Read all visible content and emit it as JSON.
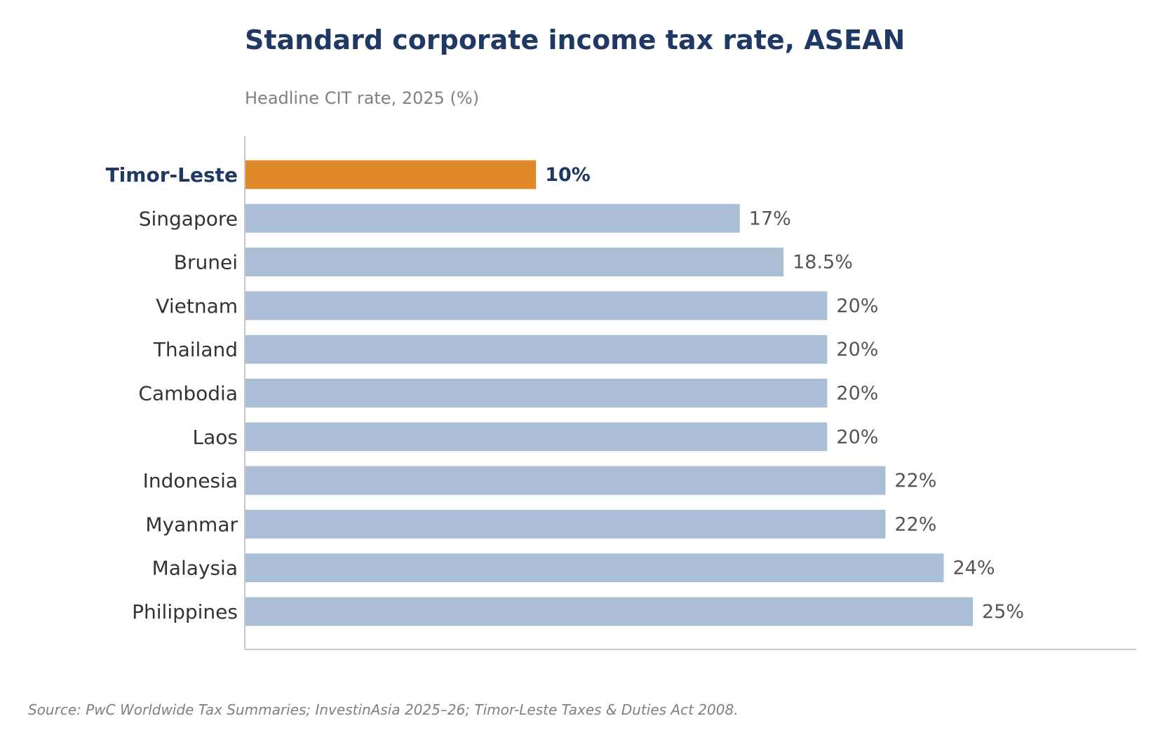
{
  "chart_data": {
    "type": "bar",
    "orientation": "horizontal",
    "title": "Standard corporate income tax rate, ASEAN",
    "subtitle": "Headline CIT rate, 2025 (%)",
    "xlabel": "",
    "ylabel": "",
    "xlim": [
      0,
      29
    ],
    "grid": false,
    "categories": [
      "Timor-Leste",
      "Singapore",
      "Brunei",
      "Vietnam",
      "Thailand",
      "Cambodia",
      "Laos",
      "Indonesia",
      "Myanmar",
      "Malaysia",
      "Philippines"
    ],
    "values": [
      10,
      17,
      18.5,
      20,
      20,
      20,
      20,
      22,
      22,
      24,
      25
    ],
    "value_labels": [
      "10%",
      "17%",
      "18.5%",
      "20%",
      "20%",
      "20%",
      "20%",
      "22%",
      "22%",
      "24%",
      "25%"
    ],
    "highlight": "Timor-Leste",
    "source": "Source: PwC Worldwide Tax Summaries; InvestinAsia 2025–26; Timor-Leste Taxes & Duties Act 2008."
  },
  "colors": {
    "title": "#1f3864",
    "subtitle": "#808080",
    "bar": "#aabfd6",
    "highlight_bar": "#e0892a",
    "highlight_text": "#1f3864",
    "category_text": "#333333",
    "value_text": "#555555",
    "axis": "#c8c8c8",
    "source_text": "#808080"
  }
}
